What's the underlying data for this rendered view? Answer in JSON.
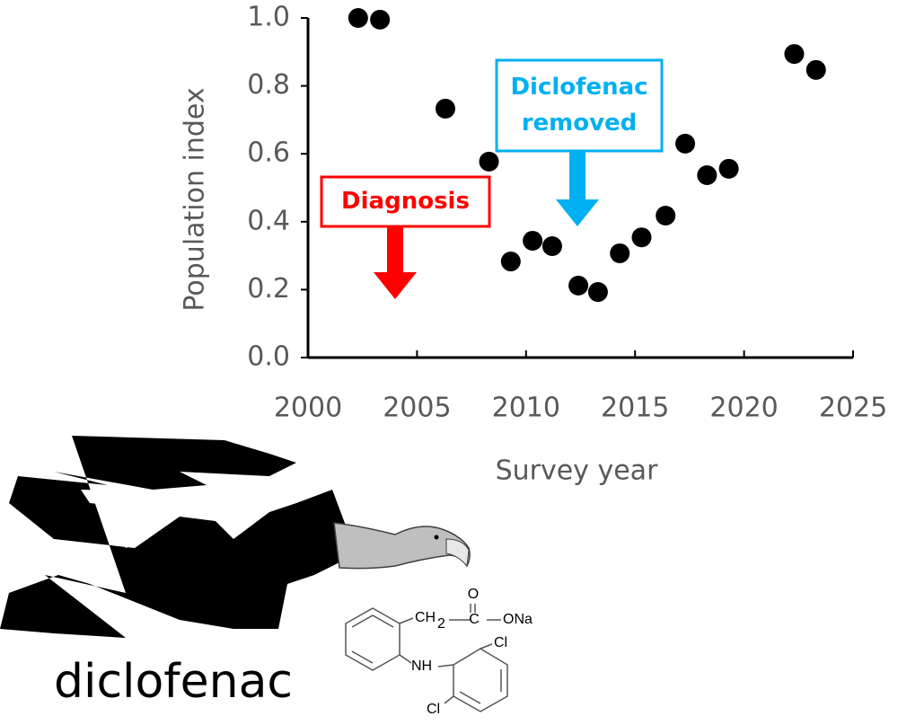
{
  "chart_data": {
    "type": "scatter",
    "x_label": "Survey year",
    "y_label": "Population index",
    "x": [
      2002.3,
      2003.3,
      2006.3,
      2008.3,
      2009.3,
      2010.3,
      2011.2,
      2012.4,
      2013.3,
      2014.3,
      2015.3,
      2016.4,
      2017.3,
      2018.3,
      2019.3,
      2022.3,
      2023.3
    ],
    "values": [
      1.0,
      0.995,
      0.733,
      0.577,
      0.283,
      0.344,
      0.328,
      0.212,
      0.193,
      0.307,
      0.354,
      0.418,
      0.63,
      0.537,
      0.556,
      0.894,
      0.847
    ],
    "color": "#000000",
    "xlim": [
      2000,
      2025
    ],
    "ylim": [
      0,
      1
    ],
    "xticks": [
      2000,
      2005,
      2010,
      2015,
      2020,
      2025
    ],
    "yticks": [
      {
        "value": 0,
        "label": "0.0"
      },
      {
        "value": 0.2,
        "label": "0.2"
      },
      {
        "value": 0.4,
        "label": "0.4"
      },
      {
        "value": 0.6,
        "label": "0.6"
      },
      {
        "value": 0.8,
        "label": "0.8"
      },
      {
        "value": 1,
        "label": "1.0"
      }
    ],
    "annotations": [
      {
        "text": [
          "Diagnosis"
        ],
        "color": "#ff0000"
      },
      {
        "text": [
          "Diclofenac",
          "removed"
        ],
        "color": "#00b0f0"
      }
    ]
  },
  "illustration": {
    "caption": "diclofenac",
    "formula_labels": [
      "CH",
      "2",
      "C",
      "O",
      "ONa",
      "NH",
      "Cl",
      "Cl"
    ]
  }
}
